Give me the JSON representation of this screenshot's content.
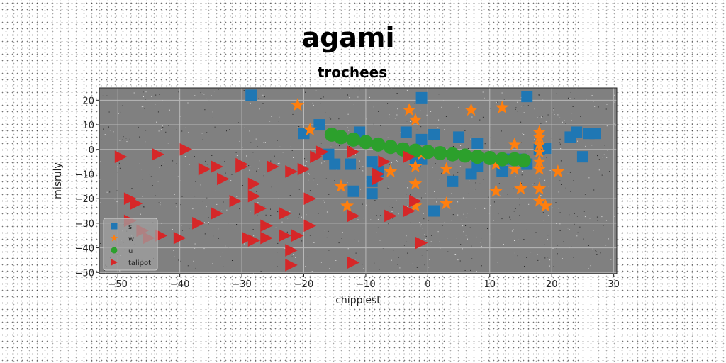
{
  "chart_data": {
    "type": "scatter",
    "title": "agami",
    "subtitle": "trochees",
    "xlabel": "chippiest",
    "ylabel": "misruly",
    "xlim": [
      -53,
      30.5
    ],
    "ylim": [
      -50.5,
      25
    ],
    "xticks": [
      -50,
      -40,
      -30,
      -20,
      -10,
      0,
      10,
      20,
      30
    ],
    "yticks": [
      -50,
      -40,
      -30,
      -20,
      -10,
      0,
      10,
      20
    ],
    "grid": true,
    "legend_position": "lower-left",
    "plot_background": "#808080",
    "series": [
      {
        "name": "s",
        "marker": "square",
        "color": "#1f77b4",
        "points": [
          [
            -28.5,
            22
          ],
          [
            -1,
            21
          ],
          [
            16,
            21.5
          ],
          [
            -20,
            6.5
          ],
          [
            -17.5,
            10
          ],
          [
            -11,
            7
          ],
          [
            -3.5,
            7
          ],
          [
            -1,
            4
          ],
          [
            1,
            6
          ],
          [
            5,
            5
          ],
          [
            8,
            2.5
          ],
          [
            18,
            0
          ],
          [
            19,
            0.5
          ],
          [
            23,
            5
          ],
          [
            24,
            7
          ],
          [
            26,
            6.5
          ],
          [
            27,
            6.5
          ],
          [
            25,
            -3
          ],
          [
            -16,
            -2
          ],
          [
            -15,
            -6
          ],
          [
            -12.5,
            -6
          ],
          [
            -9,
            -5
          ],
          [
            -8,
            -9
          ],
          [
            -9,
            -13
          ],
          [
            -12,
            -17
          ],
          [
            -9,
            -18
          ],
          [
            -2,
            -5
          ],
          [
            -1,
            -4
          ],
          [
            4,
            -13
          ],
          [
            7,
            -10
          ],
          [
            8,
            -7
          ],
          [
            12,
            -9
          ],
          [
            13,
            -4
          ],
          [
            15,
            -4
          ],
          [
            16,
            -6
          ],
          [
            1,
            -25
          ]
        ]
      },
      {
        "name": "w",
        "marker": "star",
        "color": "#ff7f0e",
        "points": [
          [
            -21,
            18
          ],
          [
            -19,
            8
          ],
          [
            -3,
            16
          ],
          [
            -2,
            12
          ],
          [
            7,
            16
          ],
          [
            12,
            17
          ],
          [
            18,
            7
          ],
          [
            18,
            5
          ],
          [
            18,
            2
          ],
          [
            18,
            -1
          ],
          [
            14,
            2
          ],
          [
            18,
            -5
          ],
          [
            18,
            -8
          ],
          [
            21,
            -9
          ],
          [
            14,
            -8
          ],
          [
            11,
            -6
          ],
          [
            11,
            -17
          ],
          [
            15,
            -16
          ],
          [
            18,
            -16
          ],
          [
            18,
            -21
          ],
          [
            19,
            -23
          ],
          [
            -1,
            -2
          ],
          [
            -6,
            -9
          ],
          [
            -2,
            -7
          ],
          [
            3,
            -8
          ],
          [
            -14,
            -15
          ],
          [
            -13,
            -23
          ],
          [
            -2,
            -14
          ],
          [
            -2,
            -23
          ],
          [
            3,
            -22
          ]
        ]
      },
      {
        "name": "u",
        "marker": "circle",
        "color": "#2ca02c",
        "points": [
          [
            -15.5,
            6
          ],
          [
            -14,
            5
          ],
          [
            -12,
            4
          ],
          [
            -10,
            3
          ],
          [
            -8,
            2
          ],
          [
            -6,
            1
          ],
          [
            -4,
            0
          ],
          [
            -2,
            -0.5
          ],
          [
            0,
            -1
          ],
          [
            2,
            -1.5
          ],
          [
            4,
            -2
          ],
          [
            6,
            -2.5
          ],
          [
            8,
            -3
          ],
          [
            10,
            -3.5
          ],
          [
            12,
            -4
          ],
          [
            14,
            -4
          ],
          [
            15.5,
            -4.5
          ]
        ]
      },
      {
        "name": "talipot",
        "marker": "triangle-right",
        "color": "#d62728",
        "points": [
          [
            -49.5,
            -3
          ],
          [
            -43.5,
            -2
          ],
          [
            -39,
            0
          ],
          [
            -36,
            -8
          ],
          [
            -34,
            -7
          ],
          [
            -33,
            -12
          ],
          [
            -30,
            -6
          ],
          [
            -30,
            -7
          ],
          [
            -28,
            -14
          ],
          [
            -28,
            -19
          ],
          [
            -25,
            -7
          ],
          [
            -22,
            -9
          ],
          [
            -20,
            -8
          ],
          [
            -19,
            -20
          ],
          [
            -18,
            -3
          ],
          [
            -17,
            -1
          ],
          [
            -12,
            -1
          ],
          [
            -7,
            -5
          ],
          [
            -8,
            -10
          ],
          [
            -8,
            -12
          ],
          [
            -3,
            -3
          ],
          [
            -2,
            -21
          ],
          [
            -3,
            -25
          ],
          [
            -6,
            -27
          ],
          [
            -12,
            -27
          ],
          [
            -19,
            -31
          ],
          [
            -23,
            -26
          ],
          [
            -26,
            -31
          ],
          [
            -27,
            -24
          ],
          [
            -31,
            -21
          ],
          [
            -34,
            -26
          ],
          [
            -37,
            -30
          ],
          [
            -40,
            -36
          ],
          [
            -43,
            -35
          ],
          [
            -45,
            -36
          ],
          [
            -46,
            -33
          ],
          [
            -48,
            -29
          ],
          [
            -47,
            -22
          ],
          [
            -48,
            -20
          ],
          [
            -29,
            -36
          ],
          [
            -28,
            -37
          ],
          [
            -26,
            -36
          ],
          [
            -23,
            -35
          ],
          [
            -21,
            -35
          ],
          [
            -22,
            -41
          ],
          [
            -22,
            -47
          ],
          [
            -12,
            -46
          ],
          [
            -1,
            -38
          ]
        ]
      }
    ]
  }
}
